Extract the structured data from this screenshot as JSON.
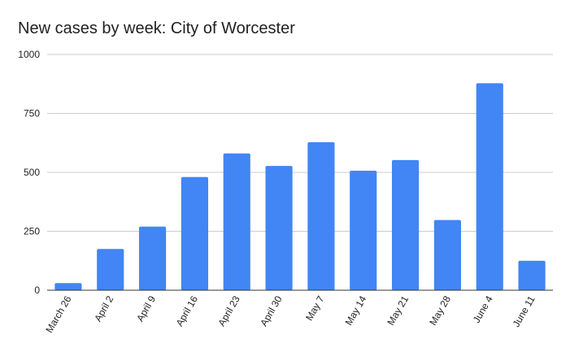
{
  "chart_data": {
    "type": "bar",
    "title": "New cases by week: City of Worcester",
    "xlabel": "",
    "ylabel": "",
    "categories": [
      "March 26",
      "April 2",
      "April 9",
      "April 16",
      "April 23",
      "April 30",
      "May 7",
      "May 14",
      "May 21",
      "May 28",
      "June 4",
      "June 11"
    ],
    "values": [
      30,
      175,
      270,
      480,
      580,
      527,
      628,
      507,
      552,
      298,
      878,
      125
    ],
    "ylim": [
      0,
      1000
    ],
    "yticks": [
      "0",
      "250",
      "500",
      "750",
      "1000"
    ],
    "grid": true,
    "legend": "none",
    "bar_color": "#4285f4"
  }
}
